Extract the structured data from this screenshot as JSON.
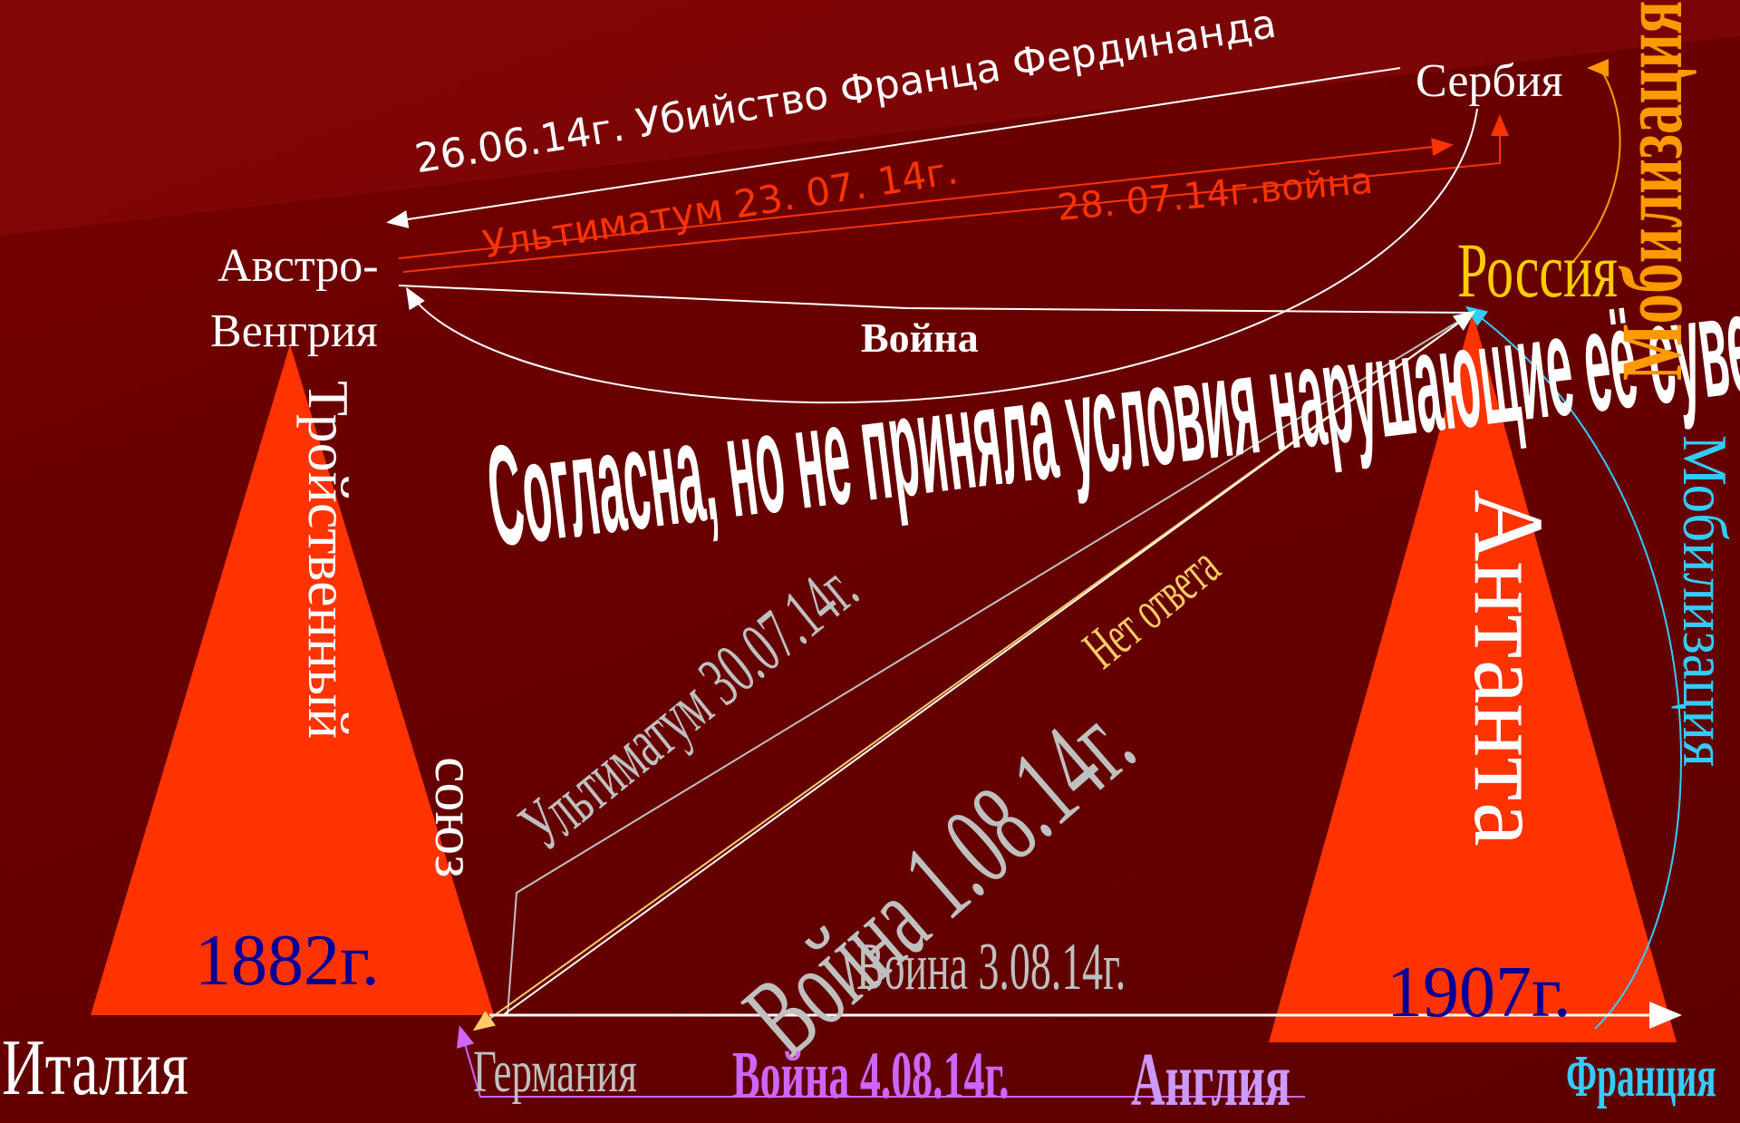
{
  "colors": {
    "background": "#6a0000",
    "triangle": "#ff3300",
    "white": "#ffffff",
    "orange_red": "#ff3300",
    "gold": "#ffcc00",
    "orange": "#ff9900",
    "gray": "#c0c0c0",
    "light_orange": "#ffcc66",
    "blue_dark": "#000099",
    "cyan": "#33ccff",
    "violet": "#cc66ff",
    "lavender": "#cc99ff"
  },
  "countries": {
    "serbia": "Сербия",
    "austria_line1": "Австро-",
    "austria_line2": "Венгрия",
    "russia": "Россия",
    "italy": "Италия",
    "germany": "Германия",
    "england": "Англия",
    "france": "Франция"
  },
  "alliances": {
    "triple_part1": "Тройственный",
    "triple_part2": "союз",
    "triple_year": "1882г.",
    "entente": "Антанта",
    "entente_year": "1907г."
  },
  "events": {
    "assassination": "26.06.14г. Убийство Франца Фердинанда",
    "ultimatum_serbia": "Ультиматум 23. 07. 14г.",
    "war_serbia": "28. 07.14г.война",
    "agreed": "Согласна, но не приняла условия нарушающие её суверенитет",
    "war_label": "Война",
    "ultimatum_russia": "Ультиматум 30.07.14г.",
    "no_answer": "Нет ответа",
    "war_russia": "Война 1.08.14г.",
    "war_france": "Война 3.08.14г.",
    "war_england": "Война 4.08.14г.",
    "mobilization_russia": "Мобилизация",
    "mobilization_france": "Мобилизация"
  }
}
